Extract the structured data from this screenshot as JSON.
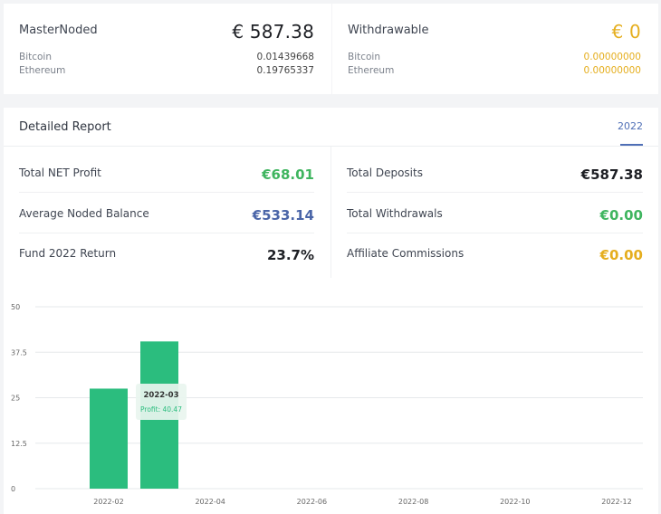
{
  "balances": {
    "masternoded": {
      "label": "MasterNoded",
      "total": "€ 587.38",
      "coins": [
        {
          "name": "Bitcoin",
          "value": "0.01439668"
        },
        {
          "name": "Ethereum",
          "value": "0.19765337"
        }
      ]
    },
    "withdrawable": {
      "label": "Withdrawable",
      "total": "€ 0",
      "coins": [
        {
          "name": "Bitcoin",
          "value": "0.00000000"
        },
        {
          "name": "Ethereum",
          "value": "0.00000000"
        }
      ]
    }
  },
  "report": {
    "title": "Detailed Report",
    "year_tab": "2022",
    "stats_left": [
      {
        "label": "Total NET Profit",
        "value": "€68.01",
        "color": "#3fb55f"
      },
      {
        "label": "Average Noded Balance",
        "value": "€533.14",
        "color": "#4a65a8"
      },
      {
        "label": "Fund 2022 Return",
        "value": "23.7%",
        "color": "#1d1f24"
      }
    ],
    "stats_right": [
      {
        "label": "Total Deposits",
        "value": "€587.38",
        "color": "#1d1f24"
      },
      {
        "label": "Total Withdrawals",
        "value": "€0.00",
        "color": "#3fb55f"
      },
      {
        "label": "Affiliate Commissions",
        "value": "€0.00",
        "color": "#e5ae1e"
      }
    ]
  },
  "colors": {
    "bar": "#2bbd7e",
    "tooltip_text": "#2bbd7e"
  },
  "chart_data": {
    "type": "bar",
    "x": [
      "2022-02",
      "2022-03"
    ],
    "values": [
      27.5,
      40.47
    ],
    "x_ticks": [
      "2022-02",
      "2022-04",
      "2022-06",
      "2022-08",
      "2022-10",
      "2022-12"
    ],
    "y_ticks": [
      "0",
      "12.5",
      "25",
      "37.5",
      "50"
    ],
    "ylim": [
      0,
      50
    ],
    "grid": true,
    "tooltip": {
      "title": "2022-03",
      "label": "Profit: 40.47"
    }
  }
}
